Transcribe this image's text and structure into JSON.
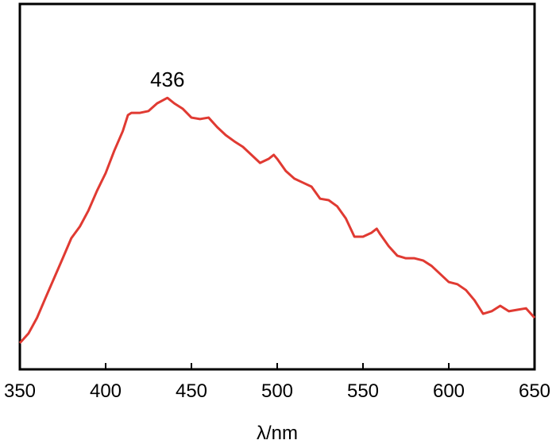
{
  "chart_data": {
    "type": "line",
    "xlabel": "λ/nm",
    "x": [
      350,
      355,
      360,
      365,
      370,
      375,
      380,
      385,
      390,
      395,
      400,
      405,
      410,
      413,
      415,
      420,
      425,
      430,
      436,
      440,
      445,
      450,
      455,
      460,
      465,
      470,
      475,
      480,
      485,
      490,
      495,
      498,
      500,
      505,
      510,
      515,
      520,
      525,
      530,
      535,
      540,
      545,
      550,
      555,
      558,
      560,
      565,
      570,
      575,
      580,
      585,
      590,
      595,
      600,
      605,
      610,
      615,
      620,
      625,
      630,
      635,
      640,
      645,
      650
    ],
    "series": [
      {
        "color": "#e03a32",
        "values": [
          7.2,
          9.8,
          14.1,
          19.6,
          25,
          30.4,
          35.9,
          39.1,
          43.5,
          48.9,
          53.7,
          59.8,
          65.2,
          69.6,
          70.2,
          70.2,
          70.7,
          72.8,
          74.3,
          72.8,
          71.3,
          68.9,
          68.5,
          68.9,
          66.3,
          64.1,
          62.4,
          60.9,
          58.7,
          56.5,
          57.6,
          58.7,
          57.6,
          54.3,
          52.2,
          51.1,
          50,
          46.7,
          46.3,
          44.6,
          41.3,
          36.3,
          36.3,
          37.4,
          38.5,
          37,
          33.7,
          31.1,
          30.4,
          30.4,
          29.8,
          28.3,
          26.1,
          23.9,
          23.3,
          21.7,
          18.9,
          15.2,
          15.9,
          17.4,
          15.9,
          16.3,
          16.7,
          14.1
        ]
      }
    ],
    "annotations": [
      {
        "text": "436",
        "x": 436,
        "y": 74.3
      }
    ],
    "xlim": [
      350,
      650
    ],
    "xticks": [
      350,
      400,
      450,
      500,
      550,
      600,
      650
    ],
    "ylim": [
      0,
      100
    ]
  }
}
